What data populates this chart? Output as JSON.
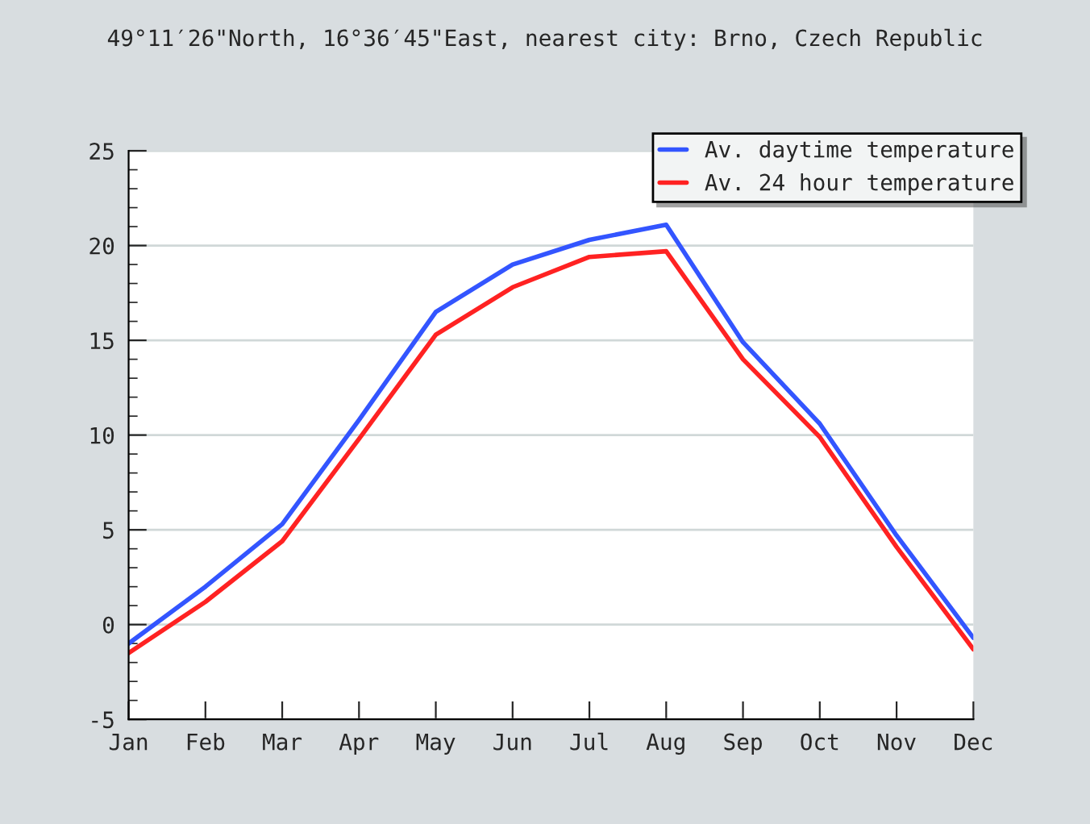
{
  "chart_data": {
    "type": "line",
    "title": "49°11′26\"North, 16°36′45\"East, nearest city: Brno, Czech Republic",
    "categories": [
      "Jan",
      "Feb",
      "Mar",
      "Apr",
      "May",
      "Jun",
      "Jul",
      "Aug",
      "Sep",
      "Oct",
      "Nov",
      "Dec"
    ],
    "series": [
      {
        "name": "Av. daytime temperature",
        "color": "#3355ff",
        "values": [
          -1.0,
          2.0,
          5.3,
          10.8,
          16.5,
          19.0,
          20.3,
          21.1,
          14.9,
          10.6,
          4.7,
          -0.7
        ]
      },
      {
        "name": "Av. 24 hour temperature",
        "color": "#ff2222",
        "values": [
          -1.5,
          1.2,
          4.4,
          9.8,
          15.3,
          17.8,
          19.4,
          19.7,
          14.0,
          9.9,
          4.1,
          -1.3
        ]
      }
    ],
    "ylim": [
      -5,
      25
    ],
    "yticks": [
      -5,
      0,
      5,
      10,
      15,
      20,
      25
    ],
    "grid": "y",
    "legend": "top right",
    "marker": "none",
    "line_style": "solid"
  }
}
